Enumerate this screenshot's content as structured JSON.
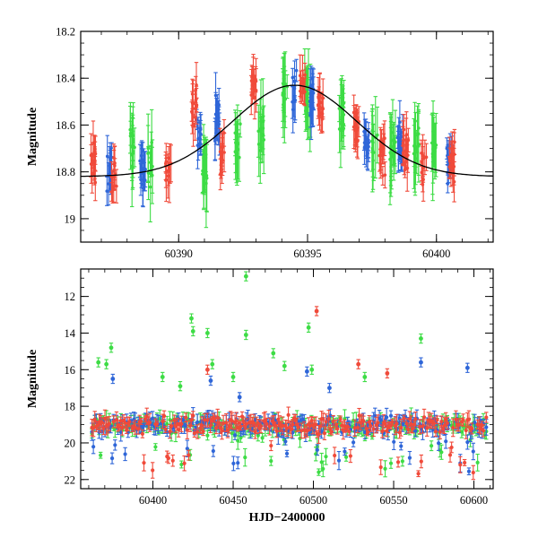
{
  "chart_data": [
    {
      "type": "scatter",
      "xlabel": "",
      "ylabel": "Magnitude",
      "xlim": [
        60386.2,
        60402.2
      ],
      "ylim": [
        19.1,
        18.2
      ],
      "y_inverted": true,
      "x_ticks": [
        60390,
        60395,
        60400
      ],
      "x_tick_labels": [
        "60390",
        "60395",
        "60400"
      ],
      "y_ticks": [
        18.2,
        18.4,
        18.6,
        18.8,
        19.0
      ],
      "y_tick_labels": [
        "18.2",
        "18.4",
        "18.6",
        "18.8",
        "19"
      ],
      "series": [
        {
          "color": "#f04a3a",
          "marker": "point-with-errorbar",
          "nights": [
            60386.7,
            60387.5,
            60389.6,
            60390.6,
            60391.7,
            60392.9,
            60394.8,
            60395.5,
            60396.9,
            60397.9,
            60398.8,
            60399.5,
            60400.6
          ],
          "night_mean_mag": [
            18.76,
            18.82,
            18.8,
            18.52,
            18.72,
            18.43,
            18.44,
            18.52,
            18.62,
            18.73,
            18.7,
            18.76,
            18.76
          ]
        },
        {
          "color": "#2f66d8",
          "marker": "point-with-errorbar",
          "nights": [
            60387.3,
            60388.6,
            60390.8,
            60391.5,
            60394.5,
            60395.2,
            60397.3,
            60398.6,
            60400.5
          ],
          "night_mean_mag": [
            18.8,
            18.78,
            18.62,
            18.57,
            18.47,
            18.5,
            18.68,
            18.66,
            18.74
          ]
        },
        {
          "color": "#3ddc45",
          "marker": "point-with-errorbar",
          "nights": [
            60388.2,
            60388.9,
            60391.0,
            60392.3,
            60393.2,
            60394.1,
            60395.0,
            60396.3,
            60397.6,
            60398.3,
            60399.2,
            60399.9
          ],
          "night_mean_mag": [
            18.68,
            18.75,
            18.78,
            18.7,
            18.63,
            18.46,
            18.5,
            18.55,
            18.66,
            18.72,
            18.69,
            18.71
          ]
        },
        {
          "type": "line",
          "color": "#000000",
          "model_peak_x": 60394.5,
          "model_peak_mag": 18.43,
          "model_baseline_mag": 18.82,
          "model_width": 2.4
        }
      ]
    },
    {
      "type": "scatter",
      "xlabel": "HJD−2400000",
      "ylabel": "Magnitude",
      "xlim": [
        60355,
        60612
      ],
      "ylim": [
        22.5,
        10.5
      ],
      "y_inverted": true,
      "x_ticks": [
        60400,
        60450,
        60500,
        60550,
        60600
      ],
      "x_tick_labels": [
        "60400",
        "60450",
        "60500",
        "60550",
        "60600"
      ],
      "y_ticks": [
        12,
        14,
        16,
        18,
        20,
        22
      ],
      "y_tick_labels": [
        "12",
        "14",
        "16",
        "18",
        "20",
        "22"
      ],
      "series": [
        {
          "color": "#f04a3a",
          "baseline_mag": 19.0,
          "outliers": [
            [
              60502,
              12.8
            ],
            [
              60434,
              16.0
            ],
            [
              60528,
              15.7
            ],
            [
              60546,
              16.2
            ]
          ]
        },
        {
          "color": "#2f66d8",
          "baseline_mag": 19.0,
          "outliers": [
            [
              60567,
              15.6
            ],
            [
              60596,
              15.9
            ],
            [
              60375,
              16.5
            ],
            [
              60436,
              16.6
            ],
            [
              60496,
              16.1
            ],
            [
              60510,
              17.0
            ],
            [
              60454,
              17.5
            ]
          ]
        },
        {
          "color": "#3ddc45",
          "baseline_mag": 19.1,
          "outliers": [
            [
              60458,
              10.9
            ],
            [
              60424,
              13.2
            ],
            [
              60425,
              13.9
            ],
            [
              60434,
              14.0
            ],
            [
              60458,
              14.1
            ],
            [
              60567,
              14.3
            ],
            [
              60497,
              13.7
            ],
            [
              60374,
              14.8
            ],
            [
              60475,
              15.1
            ],
            [
              60366,
              15.6
            ],
            [
              60371,
              15.7
            ],
            [
              60437,
              15.7
            ],
            [
              60450,
              16.4
            ],
            [
              60482,
              15.8
            ],
            [
              60499,
              16.0
            ],
            [
              60532,
              16.4
            ],
            [
              60417,
              16.9
            ],
            [
              60406,
              16.4
            ]
          ]
        }
      ]
    }
  ]
}
